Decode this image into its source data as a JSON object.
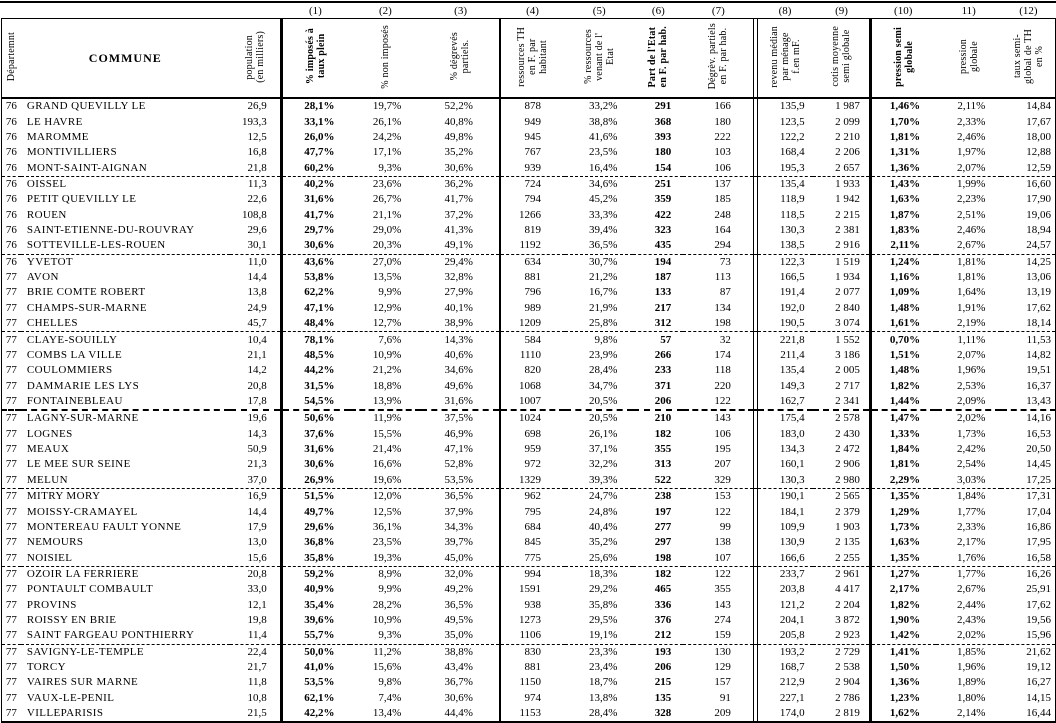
{
  "table": {
    "col_numbers": [
      "",
      "",
      "",
      "(1)",
      "(2)",
      "(3)",
      "(4)",
      "(5)",
      "(6)",
      "(7)",
      "(8)",
      "(9)",
      "(10)",
      "11)",
      "(12)"
    ],
    "headers": [
      {
        "lines": [
          "Départemnt"
        ]
      },
      {
        "lines": [
          "COMMUNE"
        ]
      },
      {
        "lines": [
          "population",
          "(en milliers)"
        ]
      },
      {
        "lines": [
          "% imposés à",
          "taux plein"
        ]
      },
      {
        "lines": [
          "% non imposés"
        ]
      },
      {
        "lines": [
          "% dégrevés",
          "partiels."
        ]
      },
      {
        "lines": [
          "ressources TH",
          "en F. par",
          "habitant"
        ]
      },
      {
        "lines": [
          "% ressources",
          "venant de l'",
          "Etat"
        ]
      },
      {
        "lines": [
          "Part de l'Etat",
          "en F. par hab."
        ]
      },
      {
        "lines": [
          "Dégrèv. partiels",
          "en F. par hab."
        ]
      },
      {
        "lines": [
          "revenu médian",
          "par ménage",
          "f.en mF."
        ]
      },
      {
        "lines": [
          "cotis moyenne",
          "semi globale"
        ]
      },
      {
        "lines": [
          "pression semi",
          "globale"
        ]
      },
      {
        "lines": [
          "pression",
          "globale"
        ]
      },
      {
        "lines": [
          "taux semi-",
          "global de TH",
          "en %"
        ]
      }
    ],
    "rows": [
      [
        "76",
        "GRAND QUEVILLY LE",
        "26,9",
        "28,1%",
        "19,7%",
        "52,2%",
        "878",
        "33,2%",
        "291",
        "166",
        "135,9",
        "1 987",
        "1,46%",
        "2,11%",
        "14,84"
      ],
      [
        "76",
        "LE HAVRE",
        "193,3",
        "33,1%",
        "26,1%",
        "40,8%",
        "949",
        "38,8%",
        "368",
        "180",
        "123,5",
        "2 099",
        "1,70%",
        "2,33%",
        "17,67"
      ],
      [
        "76",
        "MAROMME",
        "12,5",
        "26,0%",
        "24,2%",
        "49,8%",
        "945",
        "41,6%",
        "393",
        "222",
        "122,2",
        "2 210",
        "1,81%",
        "2,46%",
        "18,00"
      ],
      [
        "76",
        "MONTIVILLIERS",
        "16,8",
        "47,7%",
        "17,1%",
        "35,2%",
        "767",
        "23,5%",
        "180",
        "103",
        "168,4",
        "2 206",
        "1,31%",
        "1,97%",
        "12,88"
      ],
      [
        "76",
        "MONT-SAINT-AIGNAN",
        "21,8",
        "60,2%",
        "9,3%",
        "30,6%",
        "939",
        "16,4%",
        "154",
        "106",
        "195,3",
        "2 657",
        "1,36%",
        "2,07%",
        "12,59"
      ],
      [
        "76",
        "OISSEL",
        "11,3",
        "40,2%",
        "23,6%",
        "36,2%",
        "724",
        "34,6%",
        "251",
        "137",
        "135,4",
        "1 933",
        "1,43%",
        "1,99%",
        "16,60"
      ],
      [
        "76",
        "PETIT QUEVILLY LE",
        "22,6",
        "31,6%",
        "26,7%",
        "41,7%",
        "794",
        "45,2%",
        "359",
        "185",
        "118,9",
        "1 942",
        "1,63%",
        "2,23%",
        "17,90"
      ],
      [
        "76",
        "ROUEN",
        "108,8",
        "41,7%",
        "21,1%",
        "37,2%",
        "1266",
        "33,3%",
        "422",
        "248",
        "118,5",
        "2 215",
        "1,87%",
        "2,51%",
        "19,06"
      ],
      [
        "76",
        "SAINT-ETIENNE-DU-ROUVRAY",
        "29,6",
        "29,7%",
        "29,0%",
        "41,3%",
        "819",
        "39,4%",
        "323",
        "164",
        "130,3",
        "2 381",
        "1,83%",
        "2,46%",
        "18,94"
      ],
      [
        "76",
        "SOTTEVILLE-LES-ROUEN",
        "30,1",
        "30,6%",
        "20,3%",
        "49,1%",
        "1192",
        "36,5%",
        "435",
        "294",
        "138,5",
        "2 916",
        "2,11%",
        "2,67%",
        "24,57"
      ],
      [
        "76",
        "YVETOT",
        "11,0",
        "43,6%",
        "27,0%",
        "29,4%",
        "634",
        "30,7%",
        "194",
        "73",
        "122,3",
        "1 519",
        "1,24%",
        "1,81%",
        "14,25"
      ],
      [
        "77",
        "AVON",
        "14,4",
        "53,8%",
        "13,5%",
        "32,8%",
        "881",
        "21,2%",
        "187",
        "113",
        "166,5",
        "1 934",
        "1,16%",
        "1,81%",
        "13,06"
      ],
      [
        "77",
        "BRIE COMTE ROBERT",
        "13,8",
        "62,2%",
        "9,9%",
        "27,9%",
        "796",
        "16,7%",
        "133",
        "87",
        "191,4",
        "2 077",
        "1,09%",
        "1,64%",
        "13,19"
      ],
      [
        "77",
        "CHAMPS-SUR-MARNE",
        "24,9",
        "47,1%",
        "12,9%",
        "40,1%",
        "989",
        "21,9%",
        "217",
        "134",
        "192,0",
        "2 840",
        "1,48%",
        "1,91%",
        "17,62"
      ],
      [
        "77",
        "CHELLES",
        "45,7",
        "48,4%",
        "12,7%",
        "38,9%",
        "1209",
        "25,8%",
        "312",
        "198",
        "190,5",
        "3 074",
        "1,61%",
        "2,19%",
        "18,14"
      ],
      [
        "77",
        "CLAYE-SOUILLY",
        "10,4",
        "78,1%",
        "7,6%",
        "14,3%",
        "584",
        "9,8%",
        "57",
        "32",
        "221,8",
        "1 552",
        "0,70%",
        "1,11%",
        "11,53"
      ],
      [
        "77",
        "COMBS LA VILLE",
        "21,1",
        "48,5%",
        "10,9%",
        "40,6%",
        "1110",
        "23,9%",
        "266",
        "174",
        "211,4",
        "3 186",
        "1,51%",
        "2,07%",
        "14,82"
      ],
      [
        "77",
        "COULOMMIERS",
        "14,2",
        "44,2%",
        "21,2%",
        "34,6%",
        "820",
        "28,4%",
        "233",
        "118",
        "135,4",
        "2 005",
        "1,48%",
        "1,96%",
        "19,51"
      ],
      [
        "77",
        "DAMMARIE LES LYS",
        "20,8",
        "31,5%",
        "18,8%",
        "49,6%",
        "1068",
        "34,7%",
        "371",
        "220",
        "149,3",
        "2 717",
        "1,82%",
        "2,53%",
        "16,37"
      ],
      [
        "77",
        "FONTAINEBLEAU",
        "17,8",
        "54,5%",
        "13,9%",
        "31,6%",
        "1007",
        "20,5%",
        "206",
        "122",
        "162,7",
        "2 341",
        "1,44%",
        "2,09%",
        "13,43"
      ],
      [
        "77",
        "LAGNY-SUR-MARNE",
        "19,6",
        "50,6%",
        "11,9%",
        "37,5%",
        "1024",
        "20,5%",
        "210",
        "143",
        "175,4",
        "2 578",
        "1,47%",
        "2,02%",
        "14,16"
      ],
      [
        "77",
        "LOGNES",
        "14,3",
        "37,6%",
        "15,5%",
        "46,9%",
        "698",
        "26,1%",
        "182",
        "106",
        "183,0",
        "2 430",
        "1,33%",
        "1,73%",
        "16,53"
      ],
      [
        "77",
        "MEAUX",
        "50,9",
        "31,6%",
        "21,4%",
        "47,1%",
        "959",
        "37,1%",
        "355",
        "195",
        "134,3",
        "2 472",
        "1,84%",
        "2,42%",
        "20,50"
      ],
      [
        "77",
        "LE MEE SUR SEINE",
        "21,3",
        "30,6%",
        "16,6%",
        "52,8%",
        "972",
        "32,2%",
        "313",
        "207",
        "160,1",
        "2 906",
        "1,81%",
        "2,54%",
        "14,45"
      ],
      [
        "77",
        "MELUN",
        "37,0",
        "26,9%",
        "19,6%",
        "53,5%",
        "1329",
        "39,3%",
        "522",
        "329",
        "130,3",
        "2 980",
        "2,29%",
        "3,03%",
        "17,25"
      ],
      [
        "77",
        "MITRY MORY",
        "16,9",
        "51,5%",
        "12,0%",
        "36,5%",
        "962",
        "24,7%",
        "238",
        "153",
        "190,1",
        "2 565",
        "1,35%",
        "1,84%",
        "17,31"
      ],
      [
        "77",
        "MOISSY-CRAMAYEL",
        "14,4",
        "49,7%",
        "12,5%",
        "37,9%",
        "795",
        "24,8%",
        "197",
        "122",
        "184,1",
        "2 379",
        "1,29%",
        "1,77%",
        "17,04"
      ],
      [
        "77",
        "MONTEREAU FAULT YONNE",
        "17,9",
        "29,6%",
        "36,1%",
        "34,3%",
        "684",
        "40,4%",
        "277",
        "99",
        "109,9",
        "1 903",
        "1,73%",
        "2,33%",
        "16,86"
      ],
      [
        "77",
        "NEMOURS",
        "13,0",
        "36,8%",
        "23,5%",
        "39,7%",
        "845",
        "35,2%",
        "297",
        "138",
        "130,9",
        "2 135",
        "1,63%",
        "2,17%",
        "17,95"
      ],
      [
        "77",
        "NOISIEL",
        "15,6",
        "35,8%",
        "19,3%",
        "45,0%",
        "775",
        "25,6%",
        "198",
        "107",
        "166,6",
        "2 255",
        "1,35%",
        "1,76%",
        "16,58"
      ],
      [
        "77",
        "OZOIR LA FERRIERE",
        "20,8",
        "59,2%",
        "8,9%",
        "32,0%",
        "994",
        "18,3%",
        "182",
        "122",
        "233,7",
        "2 961",
        "1,27%",
        "1,77%",
        "16,26"
      ],
      [
        "77",
        "PONTAULT COMBAULT",
        "33,0",
        "40,9%",
        "9,9%",
        "49,2%",
        "1591",
        "29,2%",
        "465",
        "355",
        "203,8",
        "4 417",
        "2,17%",
        "2,67%",
        "25,91"
      ],
      [
        "77",
        "PROVINS",
        "12,1",
        "35,4%",
        "28,2%",
        "36,5%",
        "938",
        "35,8%",
        "336",
        "143",
        "121,2",
        "2 204",
        "1,82%",
        "2,44%",
        "17,62"
      ],
      [
        "77",
        "ROISSY EN BRIE",
        "19,8",
        "39,6%",
        "10,9%",
        "49,5%",
        "1273",
        "29,5%",
        "376",
        "274",
        "204,1",
        "3 872",
        "1,90%",
        "2,43%",
        "19,56"
      ],
      [
        "77",
        "SAINT FARGEAU PONTHIERRY",
        "11,4",
        "55,7%",
        "9,3%",
        "35,0%",
        "1106",
        "19,1%",
        "212",
        "159",
        "205,8",
        "2 923",
        "1,42%",
        "2,02%",
        "15,96"
      ],
      [
        "77",
        "SAVIGNY-LE-TEMPLE",
        "22,4",
        "50,0%",
        "11,2%",
        "38,8%",
        "830",
        "23,3%",
        "193",
        "130",
        "193,2",
        "2 729",
        "1,41%",
        "1,85%",
        "21,62"
      ],
      [
        "77",
        "TORCY",
        "21,7",
        "41,0%",
        "15,6%",
        "43,4%",
        "881",
        "23,4%",
        "206",
        "129",
        "168,7",
        "2 538",
        "1,50%",
        "1,96%",
        "19,12"
      ],
      [
        "77",
        "VAIRES SUR MARNE",
        "11,8",
        "53,5%",
        "9,8%",
        "36,7%",
        "1150",
        "18,7%",
        "215",
        "157",
        "212,9",
        "2 904",
        "1,36%",
        "1,89%",
        "16,27"
      ],
      [
        "77",
        "VAUX-LE-PENIL",
        "10,8",
        "62,1%",
        "7,4%",
        "30,6%",
        "974",
        "13,8%",
        "135",
        "91",
        "227,1",
        "2 786",
        "1,23%",
        "1,80%",
        "14,15"
      ],
      [
        "77",
        "VILLEPARISIS",
        "21,5",
        "42,2%",
        "13,4%",
        "44,4%",
        "1153",
        "28,4%",
        "328",
        "209",
        "174,0",
        "2 819",
        "1,62%",
        "2,14%",
        "16,44"
      ]
    ],
    "dashed_after_rows": [
      5,
      10,
      15,
      25,
      30,
      35
    ],
    "bold_dashed_after_rows": [
      20
    ],
    "border_color": "#000000"
  }
}
